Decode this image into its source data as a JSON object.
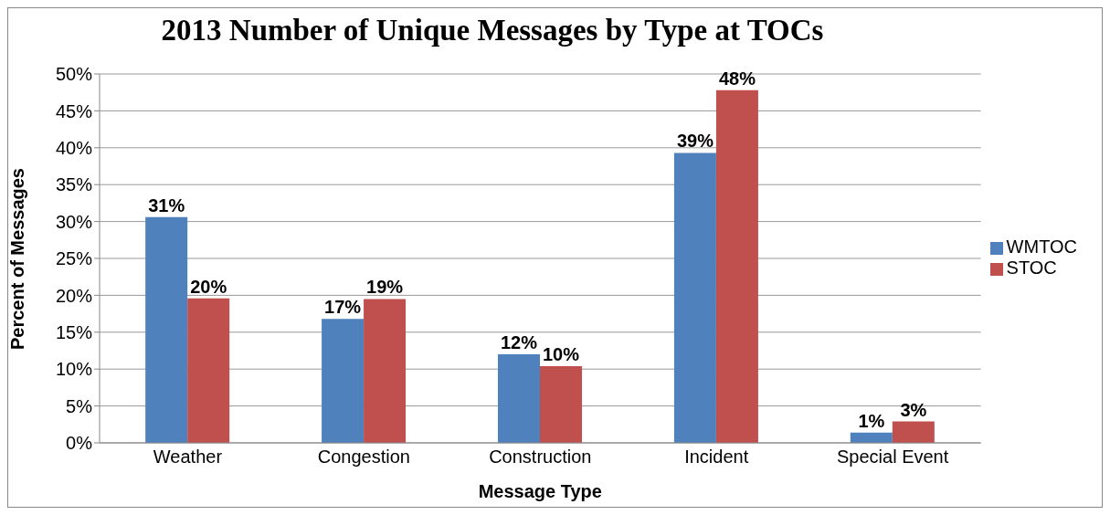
{
  "chart_data": {
    "type": "bar",
    "title": "2013 Number of Unique Messages by Type at TOCs",
    "xlabel": "Message Type",
    "ylabel": "Percent of Messages",
    "categories": [
      "Weather",
      "Congestion",
      "Construction",
      "Incident",
      "Special Event"
    ],
    "series": [
      {
        "name": "WMTOC",
        "color": "#4f81bd",
        "values": [
          30.6,
          16.8,
          12.0,
          39.3,
          1.4
        ],
        "value_labels": [
          "31%",
          "17%",
          "12%",
          "39%",
          "1%"
        ]
      },
      {
        "name": "STOC",
        "color": "#c0504d",
        "values": [
          19.6,
          19.5,
          10.4,
          47.8,
          2.9
        ],
        "value_labels": [
          "20%",
          "19%",
          "10%",
          "48%",
          "3%"
        ]
      }
    ],
    "ylim": [
      0,
      50
    ],
    "yticks": [
      {
        "value": 0,
        "label": "0%"
      },
      {
        "value": 5,
        "label": "5%"
      },
      {
        "value": 10,
        "label": "10%"
      },
      {
        "value": 15,
        "label": "15%"
      },
      {
        "value": 20,
        "label": "20%"
      },
      {
        "value": 25,
        "label": "25%"
      },
      {
        "value": 30,
        "label": "30%"
      },
      {
        "value": 35,
        "label": "35%"
      },
      {
        "value": 40,
        "label": "40%"
      },
      {
        "value": 45,
        "label": "45%"
      },
      {
        "value": 50,
        "label": "50%"
      }
    ],
    "grid": "y",
    "legend": "right"
  }
}
